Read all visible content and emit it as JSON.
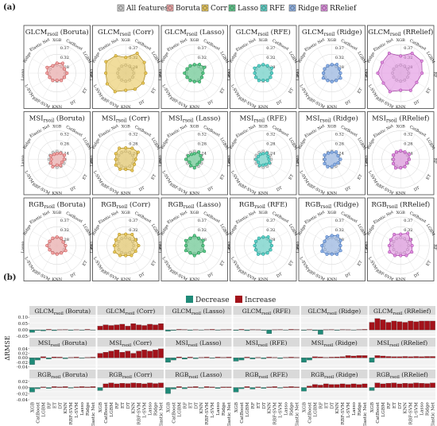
{
  "panel_a_label": "(a)",
  "panel_b_label": "(b)",
  "legend_a": [
    {
      "name": "All features",
      "color": "#cfcfcf"
    },
    {
      "name": "Boruta",
      "color": "#f2a7a7"
    },
    {
      "name": "Corr",
      "color": "#e8c75a"
    },
    {
      "name": "Lasso",
      "color": "#5cc98a"
    },
    {
      "name": "RFE",
      "color": "#5dd3c8"
    },
    {
      "name": "Ridge",
      "color": "#8fb2e6"
    },
    {
      "name": "RRelief",
      "color": "#e08ee0"
    }
  ],
  "legend_b": [
    {
      "name": "Decrease",
      "color": "#1f8a78"
    },
    {
      "name": "Increase",
      "color": "#a3121a"
    }
  ],
  "ylabel_b": "ΔRMSE",
  "models": [
    "XGB",
    "CatBoost",
    "LGBM",
    "RF",
    "ET",
    "DT",
    "KNN",
    "RBF-SVM",
    "L-SVM",
    "Lasso",
    "Ridge",
    "Elastic Net"
  ],
  "radar_axis_labels": {
    "top": "XGB",
    "tr": "CatBoost",
    "r": "LGBM",
    "rb": "RF",
    "br": "ET",
    "b": "DT",
    "bl": "KNN",
    "l1": "RBF-SVM",
    "l2": "L-SVM",
    "lt": "Lasso",
    "tl": "Ridge",
    "tl2": "Elastic Net"
  },
  "radar_ticks": [
    "0.37",
    "0.32",
    "0.28"
  ],
  "radar_ticks_msi": [
    "0.32",
    "0.28",
    "0.24"
  ],
  "chart_data": [
    {
      "type": "radar",
      "rows": [
        "GLCM",
        "MSI",
        "RGB"
      ],
      "subscript": "rsoil",
      "methods": [
        "Boruta",
        "Corr",
        "Lasso",
        "RFE",
        "Ridge",
        "RRelief"
      ],
      "titles": [
        [
          "GLCM (Boruta)",
          "GLCM (Corr)",
          "GLCM (Lasso)",
          "GLCM (RFE)",
          "GLCM (Ridge)",
          "GLCM (RRelief)"
        ],
        [
          "MSI (Boruta)",
          "MSI (Corr)",
          "MSI (Lasso)",
          "MSI (RFE)",
          "MSI (Ridge)",
          "MSI (RRelief)"
        ],
        [
          "RGB (Boruta)",
          "RGB (Corr)",
          "RGB (Lasso)",
          "RGB (RFE)",
          "RGB (Ridge)",
          "RGB (RRelief)"
        ]
      ],
      "radius_fraction": [
        [
          [
            0.35,
            0.4,
            0.3,
            0.35,
            0.3,
            0.3,
            0.25,
            0.3,
            0.3,
            0.35,
            0.4,
            0.3
          ],
          [
            0.55,
            0.8,
            0.75,
            0.7,
            0.7,
            0.65,
            0.6,
            0.75,
            0.75,
            0.7,
            0.8,
            0.7
          ],
          [
            0.3,
            0.35,
            0.4,
            0.3,
            0.3,
            0.35,
            0.3,
            0.3,
            0.3,
            0.35,
            0.3,
            0.3
          ],
          [
            0.3,
            0.3,
            0.35,
            0.3,
            0.3,
            0.3,
            0.25,
            0.3,
            0.3,
            0.3,
            0.35,
            0.3
          ],
          [
            0.3,
            0.35,
            0.3,
            0.3,
            0.35,
            0.3,
            0.3,
            0.3,
            0.35,
            0.3,
            0.3,
            0.3
          ],
          [
            0.6,
            0.8,
            0.85,
            0.75,
            0.65,
            0.7,
            0.6,
            0.75,
            0.7,
            0.8,
            0.75,
            0.8
          ]
        ],
        [
          [
            0.2,
            0.25,
            0.3,
            0.25,
            0.2,
            0.25,
            0.2,
            0.3,
            0.25,
            0.2,
            0.25,
            0.2
          ],
          [
            0.4,
            0.45,
            0.5,
            0.35,
            0.35,
            0.45,
            0.35,
            0.4,
            0.4,
            0.35,
            0.4,
            0.45
          ],
          [
            0.2,
            0.3,
            0.25,
            0.25,
            0.2,
            0.2,
            0.3,
            0.25,
            0.2,
            0.3,
            0.25,
            0.2
          ],
          [
            0.2,
            0.25,
            0.2,
            0.2,
            0.25,
            0.2,
            0.2,
            0.25,
            0.2,
            0.25,
            0.2,
            0.2
          ],
          [
            0.25,
            0.3,
            0.25,
            0.3,
            0.25,
            0.2,
            0.25,
            0.3,
            0.3,
            0.25,
            0.3,
            0.25
          ],
          [
            0.3,
            0.3,
            0.35,
            0.3,
            0.25,
            0.3,
            0.3,
            0.35,
            0.3,
            0.25,
            0.3,
            0.3
          ]
        ],
        [
          [
            0.3,
            0.3,
            0.25,
            0.3,
            0.35,
            0.3,
            0.3,
            0.3,
            0.3,
            0.35,
            0.3,
            0.3
          ],
          [
            0.4,
            0.45,
            0.4,
            0.45,
            0.4,
            0.4,
            0.35,
            0.4,
            0.45,
            0.4,
            0.4,
            0.45
          ],
          [
            0.35,
            0.3,
            0.35,
            0.3,
            0.4,
            0.3,
            0.35,
            0.3,
            0.35,
            0.3,
            0.35,
            0.3
          ],
          [
            0.3,
            0.35,
            0.3,
            0.3,
            0.3,
            0.3,
            0.3,
            0.35,
            0.3,
            0.3,
            0.3,
            0.3
          ],
          [
            0.35,
            0.4,
            0.35,
            0.3,
            0.35,
            0.35,
            0.3,
            0.35,
            0.4,
            0.35,
            0.3,
            0.35
          ],
          [
            0.4,
            0.5,
            0.4,
            0.4,
            0.45,
            0.4,
            0.35,
            0.4,
            0.45,
            0.4,
            0.4,
            0.45
          ]
        ]
      ]
    },
    {
      "type": "bar",
      "ylabel": "ΔRMSE",
      "rows": [
        "GLCM",
        "MSI",
        "RGB"
      ],
      "subscript": "rsoil",
      "yticks": [
        [
          "-0.05",
          "0.00",
          "0.05",
          "0.10"
        ],
        [
          "-0.04",
          "-0.02",
          "0.00",
          "0.02",
          "0.04"
        ],
        [
          "-0.04",
          "-0.02",
          "0.00",
          "0.02"
        ]
      ],
      "ylim": [
        [
          -0.05,
          0.12
        ],
        [
          -0.045,
          0.05
        ],
        [
          -0.04,
          0.03
        ]
      ],
      "titles": [
        [
          "GLCM (Boruta)",
          "GLCM (Corr)",
          "GLCM (Lasso)",
          "GLCM (RFE)",
          "GLCM (Ridge)",
          "GLCM (RRelief)"
        ],
        [
          "MSI (Boruta)",
          "MSI (Corr)",
          "MSI (Lasso)",
          "MSI (RFE)",
          "MSI (Ridge)",
          "MSI (RRelief)"
        ],
        [
          "RGB (Boruta)",
          "RGB (Corr)",
          "RGB (Lasso)",
          "RGB (RFE)",
          "RGB (Ridge)",
          "RGB (RRelief)"
        ]
      ],
      "values": [
        [
          [
            -0.02,
            -0.005,
            -0.008,
            0.004,
            -0.006,
            0.002,
            0.003,
            -0.004,
            0.002,
            -0.003,
            0.004,
            -0.002
          ],
          [
            0.03,
            0.04,
            0.035,
            0.04,
            0.045,
            0.03,
            0.05,
            0.04,
            0.035,
            0.045,
            0.04,
            0.05
          ],
          [
            -0.01,
            -0.005,
            0.004,
            0.003,
            -0.004,
            0.002,
            -0.002,
            0.003,
            0.004,
            -0.003,
            0.002,
            0.003
          ],
          [
            -0.005,
            0.004,
            -0.006,
            0.003,
            0.002,
            -0.004,
            -0.03,
            0.002,
            0.003,
            -0.002,
            0.004,
            0.003
          ],
          [
            -0.004,
            0.003,
            -0.006,
            -0.035,
            0.002,
            0.003,
            -0.004,
            0.003,
            0.002,
            -0.002,
            0.003,
            0.004
          ],
          [
            0.06,
            0.09,
            0.08,
            0.06,
            0.07,
            0.065,
            0.06,
            0.07,
            0.065,
            0.07,
            0.07,
            0.07
          ]
        ],
        [
          [
            -0.03,
            -0.01,
            0.005,
            -0.005,
            0.004,
            0.003,
            -0.004,
            0.002,
            0.003,
            -0.002,
            0.002,
            0.003
          ],
          [
            0.02,
            0.025,
            0.03,
            0.035,
            0.025,
            0.03,
            0.02,
            0.03,
            0.035,
            0.03,
            0.035,
            0.04
          ],
          [
            -0.02,
            -0.01,
            0.004,
            -0.006,
            0.003,
            -0.004,
            0.002,
            0.003,
            -0.002,
            0.003,
            0.002,
            0.003
          ],
          [
            -0.015,
            -0.01,
            0.003,
            -0.005,
            0.002,
            -0.004,
            0.003,
            0.002,
            -0.003,
            0.002,
            0.003,
            0.002
          ],
          [
            -0.02,
            -0.01,
            0.005,
            0.004,
            0.002,
            0.003,
            0.004,
            0.005,
            0.01,
            0.008,
            0.01,
            0.01
          ],
          [
            -0.02,
            0.01,
            0.008,
            0.006,
            0.005,
            0.005,
            0.006,
            0.005,
            0.006,
            0.005,
            0.006,
            0.006
          ]
        ],
        [
          [
            -0.015,
            -0.004,
            0.002,
            -0.003,
            0.003,
            0.002,
            0.003,
            -0.002,
            0.002,
            0.003,
            0.002,
            0.003
          ],
          [
            -0.01,
            0.012,
            0.015,
            0.012,
            0.014,
            0.013,
            0.015,
            0.014,
            0.012,
            0.015,
            0.013,
            0.015
          ],
          [
            -0.02,
            -0.005,
            0.003,
            -0.004,
            0.002,
            0.003,
            -0.002,
            0.003,
            0.002,
            -0.003,
            0.002,
            0.002
          ],
          [
            -0.015,
            -0.004,
            0.003,
            -0.005,
            0.002,
            -0.003,
            0.002,
            0.003,
            -0.002,
            0.002,
            0.003,
            0.002
          ],
          [
            -0.012,
            0.005,
            0.01,
            0.008,
            0.012,
            0.01,
            0.01,
            0.012,
            0.01,
            0.012,
            0.01,
            0.012
          ],
          [
            -0.01,
            0.015,
            0.012,
            0.014,
            0.015,
            0.012,
            0.014,
            0.013,
            0.015,
            0.014,
            0.013,
            0.015
          ]
        ]
      ]
    }
  ]
}
